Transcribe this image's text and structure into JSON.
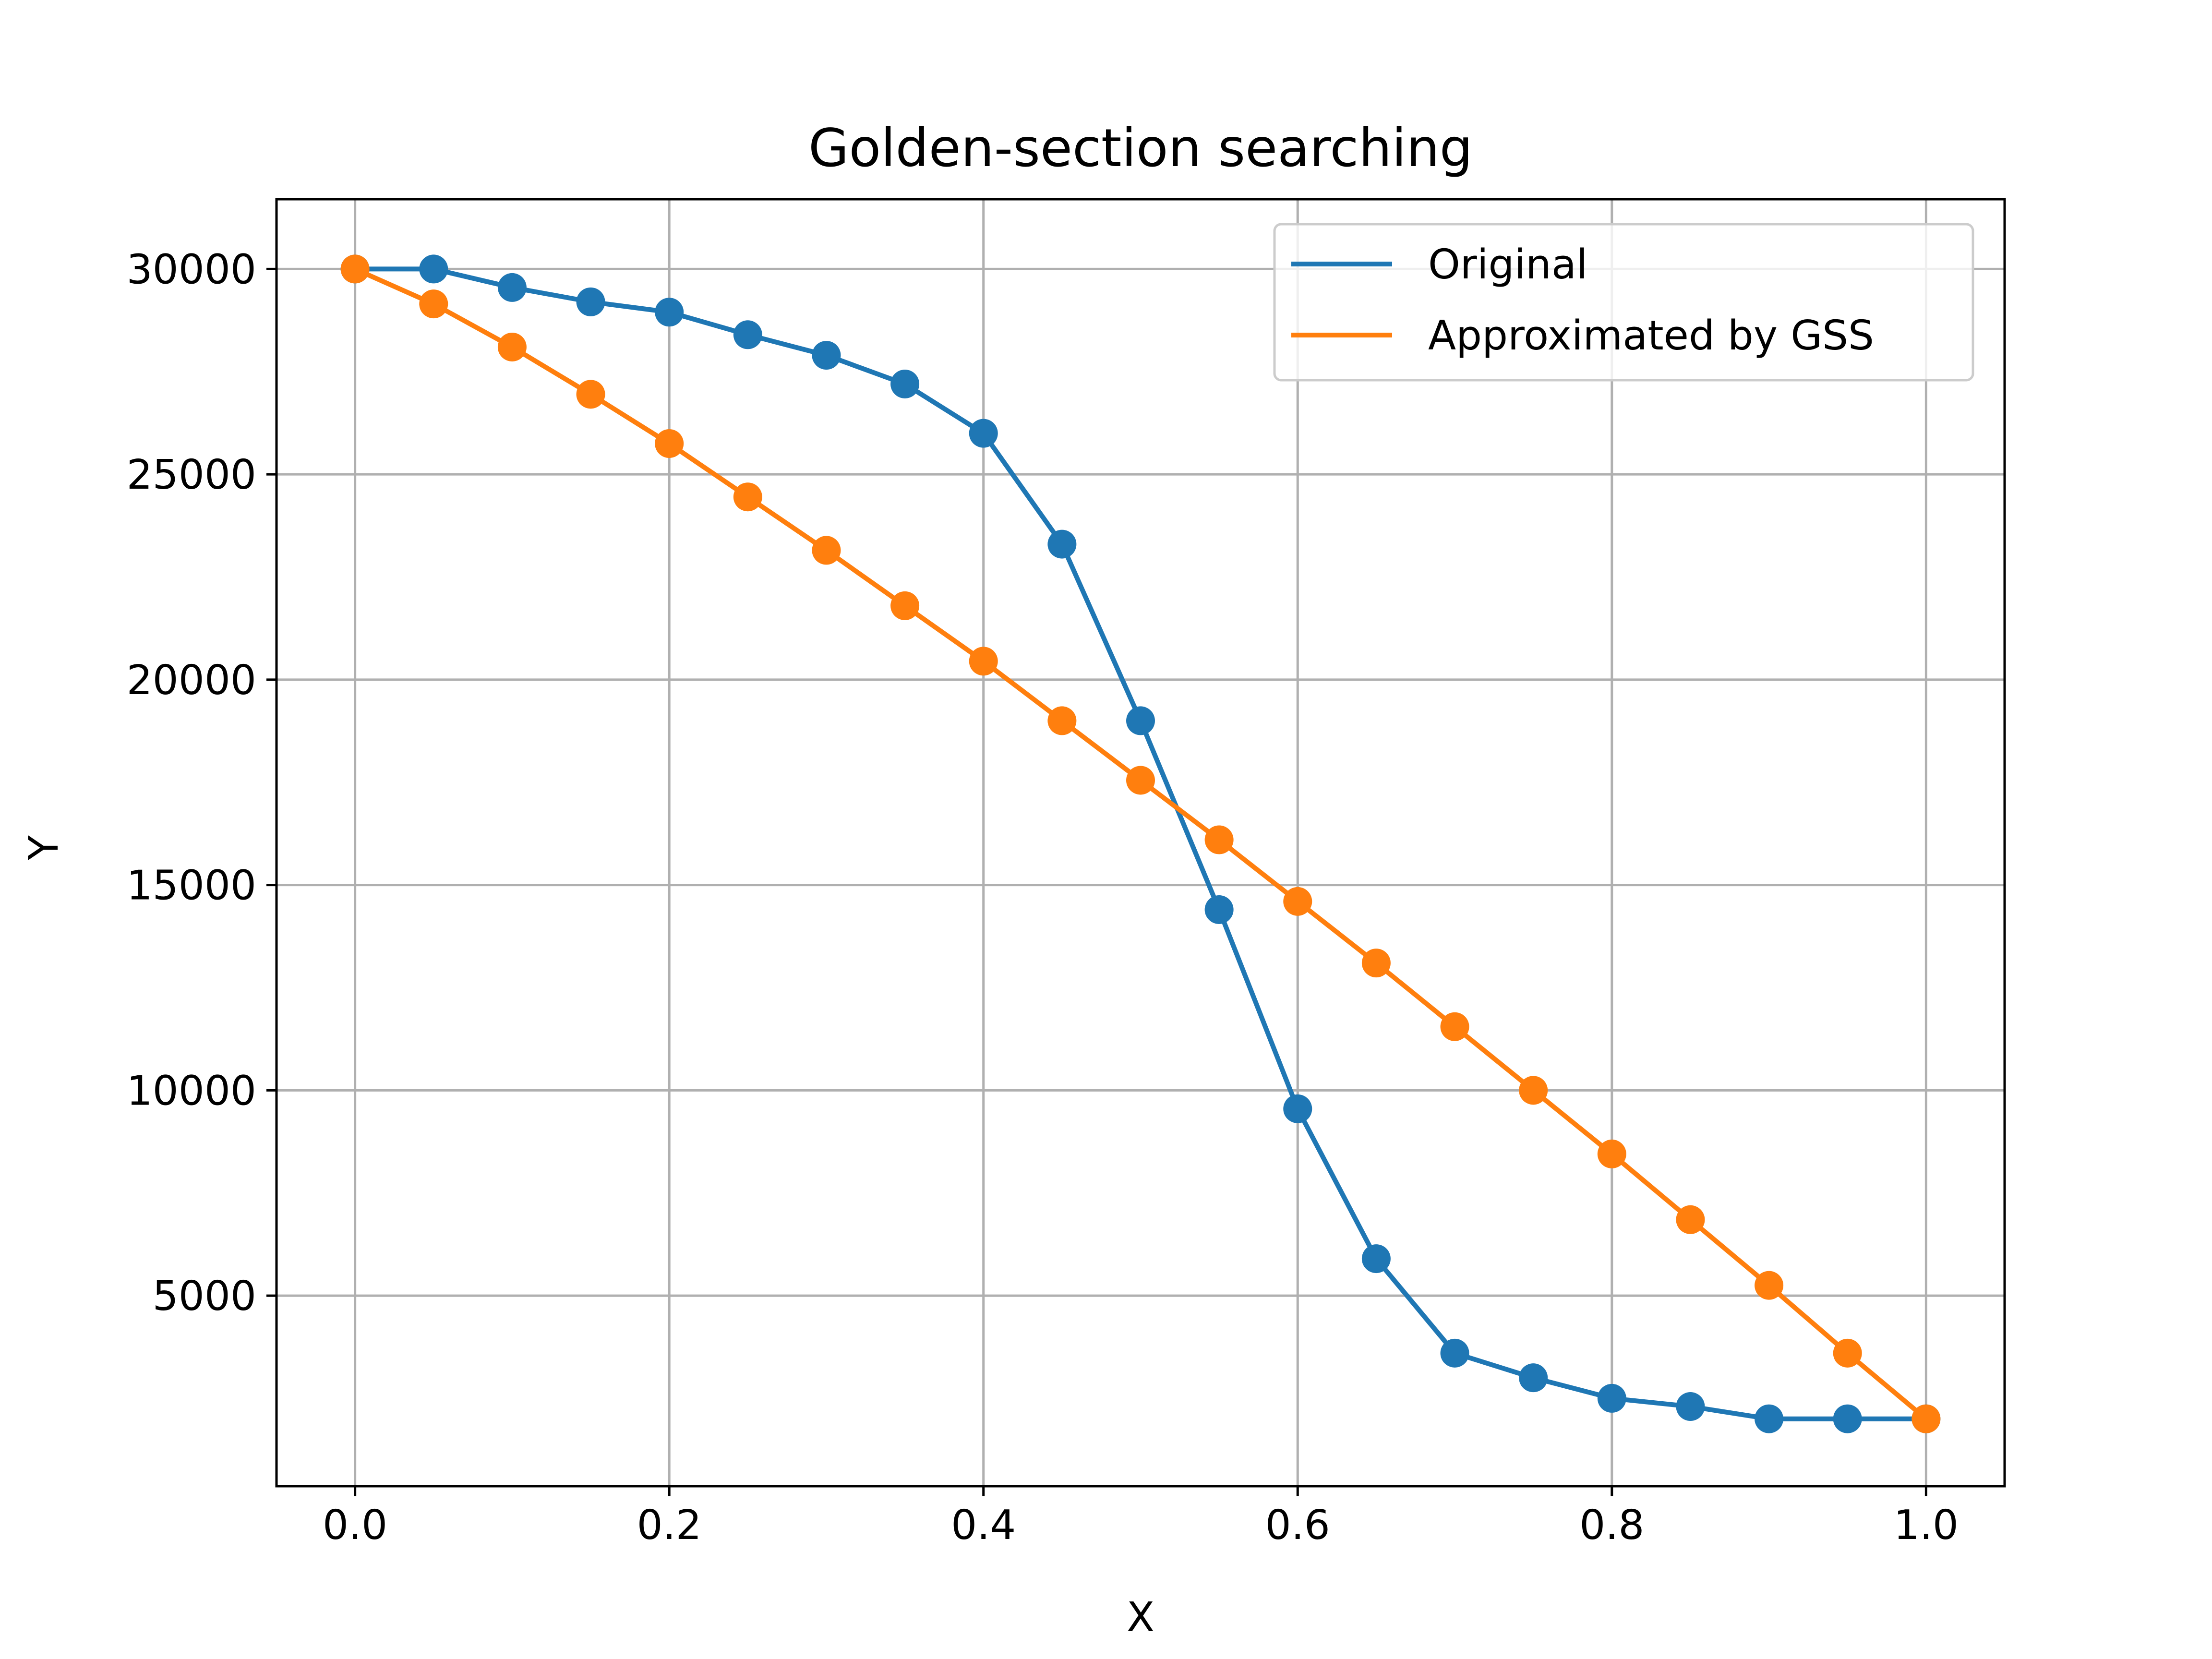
{
  "chart_data": {
    "type": "line",
    "title": "Golden-section searching",
    "xlabel": "X",
    "ylabel": "Y",
    "xlim": [
      -0.05,
      1.05
    ],
    "ylim": [
      360,
      31700
    ],
    "xticks": [
      0.0,
      0.2,
      0.4,
      0.6,
      0.8,
      1.0
    ],
    "xtick_labels": [
      "0.0",
      "0.2",
      "0.4",
      "0.6",
      "0.8",
      "1.0"
    ],
    "yticks": [
      5000,
      10000,
      15000,
      20000,
      25000,
      30000
    ],
    "ytick_labels": [
      "5000",
      "10000",
      "15000",
      "20000",
      "25000",
      "30000"
    ],
    "grid": true,
    "legend_position": "top-right",
    "x": [
      0.0,
      0.05,
      0.1,
      0.15,
      0.2,
      0.25,
      0.3,
      0.35,
      0.4,
      0.45,
      0.5,
      0.55,
      0.6,
      0.65,
      0.7,
      0.75,
      0.8,
      0.85,
      0.9,
      0.95,
      1.0
    ],
    "series": [
      {
        "name": "Original",
        "color": "#1f77b4",
        "values": [
          30000,
          30000,
          29550,
          29200,
          28950,
          28400,
          27900,
          27200,
          26000,
          23300,
          19000,
          14400,
          9550,
          5900,
          3600,
          3000,
          2500,
          2300,
          2000,
          2000,
          2000
        ]
      },
      {
        "name": "Approximated by GSS",
        "color": "#ff7f0e",
        "values": [
          30000,
          29150,
          28100,
          26950,
          25750,
          24450,
          23150,
          21800,
          20450,
          19000,
          17550,
          16100,
          14600,
          13100,
          11550,
          10000,
          8450,
          6850,
          5250,
          3600,
          2000
        ]
      }
    ]
  }
}
